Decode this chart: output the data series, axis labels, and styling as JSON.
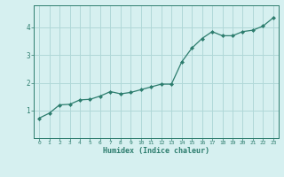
{
  "x": [
    0,
    1,
    2,
    3,
    4,
    5,
    6,
    7,
    8,
    9,
    10,
    11,
    12,
    13,
    14,
    15,
    16,
    17,
    18,
    19,
    20,
    21,
    22,
    23
  ],
  "y": [
    0.72,
    0.9,
    1.2,
    1.22,
    1.38,
    1.4,
    1.52,
    1.68,
    1.6,
    1.65,
    1.75,
    1.85,
    1.95,
    1.95,
    2.75,
    3.25,
    3.6,
    3.85,
    3.7,
    3.7,
    3.85,
    3.9,
    4.05,
    4.35
  ],
  "xlabel": "Humidex (Indice chaleur)",
  "line_color": "#2d7d6e",
  "marker_color": "#2d7d6e",
  "bg_color": "#d6f0f0",
  "grid_color": "#b0d8d8",
  "axis_color": "#2d7d6e",
  "ylim": [
    0.0,
    4.8
  ],
  "xlim": [
    -0.5,
    23.5
  ],
  "yticks": [
    1,
    2,
    3,
    4
  ],
  "xticks": [
    0,
    1,
    2,
    3,
    4,
    5,
    6,
    7,
    8,
    9,
    10,
    11,
    12,
    13,
    14,
    15,
    16,
    17,
    18,
    19,
    20,
    21,
    22,
    23
  ],
  "font_color": "#2d7d6e"
}
